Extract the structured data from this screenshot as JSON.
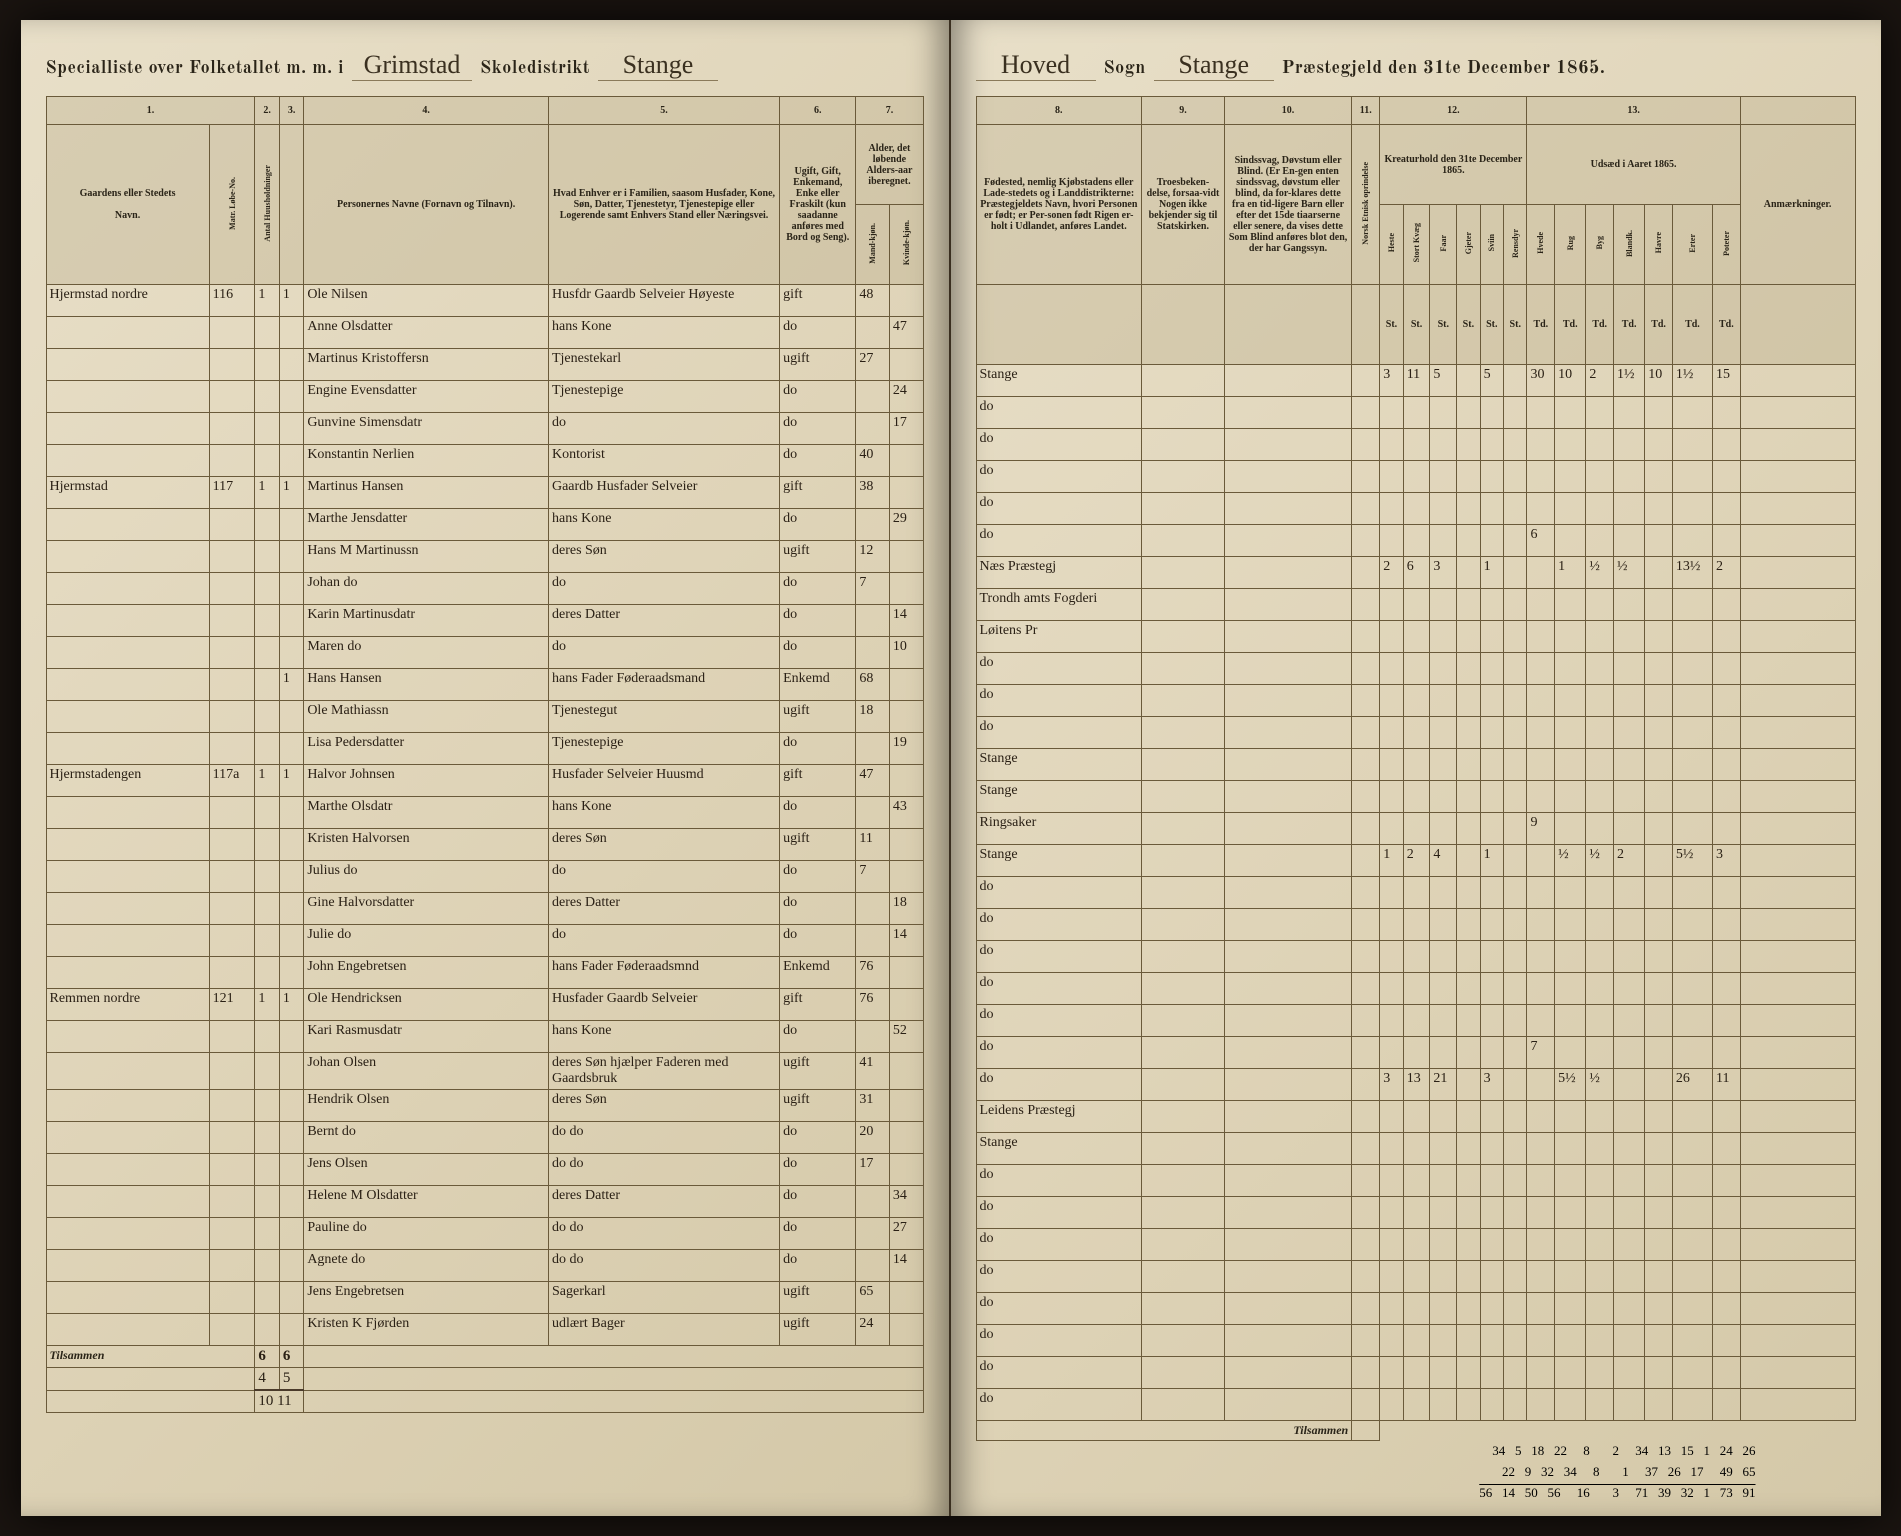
{
  "header": {
    "left_prefix": "Specialliste over Folketallet m. m. i",
    "district_label": "Grimstad",
    "skole_label": "Skoledistrikt",
    "parish_script": "Stange",
    "right_sogn_prefix": "Hoved",
    "sogn_label": "Sogn",
    "sogn_script": "Stange",
    "praestegjeld_label": "Præstegjeld den 31te December 1865."
  },
  "col_headers_left": {
    "c1": "1.",
    "c2": "2.",
    "c3": "3.",
    "c4": "4.",
    "c5": "5.",
    "c6": "6.",
    "c7": "7."
  },
  "col_headers_right": {
    "c8": "8.",
    "c9": "9.",
    "c10": "10.",
    "c11": "11.",
    "c12": "12.",
    "c13": "13."
  },
  "sub_headers_left": {
    "gaard": "Gaardens eller Stedets",
    "navn": "Navn.",
    "matr": "Matr. Løbe-No.",
    "huush": "Antal Huusholdninger",
    "personer": "Personernes Navne (Fornavn og Tilnavn).",
    "stand": "Hvad Enhver er i Familien, saasom Husfader, Kone, Søn, Datter, Tjenestetyr, Tjenestepige eller Logerende samt Enhvers Stand eller Næringsvei.",
    "ugift": "Ugift, Gift, Enkemand, Enke eller Fraskilt (kun saadanne anføres med Bord og Seng).",
    "alder_m": "Alder, det løbende Alders-aar iberegnet.",
    "mand": "Mand-kjøn.",
    "kvinde": "Kvinde-kjøn."
  },
  "sub_headers_right": {
    "fodested": "Fødested, nemlig Kjøbstadens eller Lade-stedets og i Landdistrikterne: Præstegjeldets Navn, hvori Personen er født; er Per-sonen født Rigen er-holt i Udlandet, anføres Landet.",
    "tro": "Troesbeken-delse, forsaa-vidt Nogen ikke bekjender sig til Statskirken.",
    "sind": "Sindssvag, Døvstum eller Blind. (Er En-gen enten sindssvag, døvstum eller blind, da for-klares dette fra en tid-ligere Barn eller efter det 15de tiaarserne eller senere, da vises dette Som Blind anføres blot den, der har Gangssyn.",
    "norsk": "Norsk Etnisk oprindelse",
    "kreatur_title": "Kreaturhold den 31te December 1865.",
    "udsaed_title": "Udsæd i Aaret 1865.",
    "anm": "Anmærkninger.",
    "heste": "Heste",
    "stort": "Stort Kvæg",
    "faar": "Faar",
    "gjeter": "Gjeter",
    "sviin": "Sviin",
    "rensdyr": "Rensdyr",
    "hvede": "Hvede",
    "rug": "Rug",
    "byg": "Byg",
    "bland": "Blandk.",
    "havre": "Havre",
    "erter": "Erter",
    "poteter": "Poteter"
  },
  "rows": [
    {
      "gaard": "Hjermstad nordre",
      "matr": "116",
      "h": "1",
      "p": "1",
      "name": "Ole Nilsen",
      "role": "Husfdr Gaardb Selveier Høyeste",
      "civil": "gift",
      "age_m": "48",
      "age_k": "",
      "birthplace": "Stange",
      "livestock": [
        "3",
        "11",
        "5",
        "",
        "5",
        "",
        "30",
        "10",
        "2",
        "1½",
        "10",
        "1½",
        "15"
      ]
    },
    {
      "gaard": "",
      "matr": "",
      "h": "",
      "p": "",
      "name": "Anne Olsdatter",
      "role": "hans Kone",
      "civil": "do",
      "age_m": "",
      "age_k": "47",
      "birthplace": "do",
      "livestock": []
    },
    {
      "gaard": "",
      "matr": "",
      "h": "",
      "p": "",
      "name": "Martinus Kristoffersn",
      "role": "Tjenestekarl",
      "civil": "ugift",
      "age_m": "27",
      "age_k": "",
      "birthplace": "do",
      "livestock": []
    },
    {
      "gaard": "",
      "matr": "",
      "h": "",
      "p": "",
      "name": "Engine Evensdatter",
      "role": "Tjenestepige",
      "civil": "do",
      "age_m": "",
      "age_k": "24",
      "birthplace": "do",
      "livestock": []
    },
    {
      "gaard": "",
      "matr": "",
      "h": "",
      "p": "",
      "name": "Gunvine Simensdatr",
      "role": "do",
      "civil": "do",
      "age_m": "",
      "age_k": "17",
      "birthplace": "do",
      "livestock": []
    },
    {
      "gaard": "",
      "matr": "",
      "h": "",
      "p": "",
      "name": "Konstantin Nerlien",
      "role": "Kontorist",
      "civil": "do",
      "age_m": "40",
      "age_k": "",
      "birthplace": "do",
      "livestock": [
        "",
        "",
        "",
        "",
        "",
        "",
        "6",
        "",
        "",
        "",
        "",
        "",
        ""
      ]
    },
    {
      "gaard": "Hjermstad",
      "matr": "117",
      "h": "1",
      "p": "1",
      "name": "Martinus Hansen",
      "role": "Gaardb Husfader Selveier",
      "civil": "gift",
      "age_m": "38",
      "age_k": "",
      "birthplace": "Næs Præstegj",
      "livestock": [
        "2",
        "6",
        "3",
        "",
        "1",
        "",
        "",
        "1",
        "½",
        "½",
        "",
        "13½",
        "2"
      ]
    },
    {
      "gaard": "",
      "matr": "",
      "h": "",
      "p": "",
      "name": "Marthe Jensdatter",
      "role": "hans Kone",
      "civil": "do",
      "age_m": "",
      "age_k": "29",
      "birthplace": "Trondh amts Fogderi",
      "livestock": []
    },
    {
      "gaard": "",
      "matr": "",
      "h": "",
      "p": "",
      "name": "Hans M Martinussn",
      "role": "deres Søn",
      "civil": "ugift",
      "age_m": "12",
      "age_k": "",
      "birthplace": "Løitens Pr",
      "livestock": []
    },
    {
      "gaard": "",
      "matr": "",
      "h": "",
      "p": "",
      "name": "Johan do",
      "role": "do",
      "civil": "do",
      "age_m": "7",
      "age_k": "",
      "birthplace": "do",
      "livestock": []
    },
    {
      "gaard": "",
      "matr": "",
      "h": "",
      "p": "",
      "name": "Karin Martinusdatr",
      "role": "deres Datter",
      "civil": "do",
      "age_m": "",
      "age_k": "14",
      "birthplace": "do",
      "livestock": []
    },
    {
      "gaard": "",
      "matr": "",
      "h": "",
      "p": "",
      "name": "Maren do",
      "role": "do",
      "civil": "do",
      "age_m": "",
      "age_k": "10",
      "birthplace": "do",
      "livestock": []
    },
    {
      "gaard": "",
      "matr": "",
      "h": "",
      "p": "1",
      "name": "Hans Hansen",
      "role": "hans Fader Føderaadsmand",
      "civil": "Enkemd",
      "age_m": "68",
      "age_k": "",
      "birthplace": "Stange",
      "livestock": []
    },
    {
      "gaard": "",
      "matr": "",
      "h": "",
      "p": "",
      "name": "Ole Mathiassn",
      "role": "Tjenestegut",
      "civil": "ugift",
      "age_m": "18",
      "age_k": "",
      "birthplace": "Stange",
      "livestock": []
    },
    {
      "gaard": "",
      "matr": "",
      "h": "",
      "p": "",
      "name": "Lisa Pedersdatter",
      "role": "Tjenestepige",
      "civil": "do",
      "age_m": "",
      "age_k": "19",
      "birthplace": "Ringsaker",
      "livestock": [
        "",
        "",
        "",
        "",
        "",
        "",
        "9",
        "",
        "",
        "",
        "",
        "",
        ""
      ]
    },
    {
      "gaard": "Hjermstadengen",
      "matr": "117a",
      "h": "1",
      "p": "1",
      "name": "Halvor Johnsen",
      "role": "Husfader Selveier Huusmd",
      "civil": "gift",
      "age_m": "47",
      "age_k": "",
      "birthplace": "Stange",
      "livestock": [
        "1",
        "2",
        "4",
        "",
        "1",
        "",
        "",
        "½",
        "½",
        "2",
        "",
        "5½",
        "3"
      ]
    },
    {
      "gaard": "",
      "matr": "",
      "h": "",
      "p": "",
      "name": "Marthe Olsdatr",
      "role": "hans Kone",
      "civil": "do",
      "age_m": "",
      "age_k": "43",
      "birthplace": "do",
      "livestock": []
    },
    {
      "gaard": "",
      "matr": "",
      "h": "",
      "p": "",
      "name": "Kristen Halvorsen",
      "role": "deres Søn",
      "civil": "ugift",
      "age_m": "11",
      "age_k": "",
      "birthplace": "do",
      "livestock": []
    },
    {
      "gaard": "",
      "matr": "",
      "h": "",
      "p": "",
      "name": "Julius do",
      "role": "do",
      "civil": "do",
      "age_m": "7",
      "age_k": "",
      "birthplace": "do",
      "livestock": []
    },
    {
      "gaard": "",
      "matr": "",
      "h": "",
      "p": "",
      "name": "Gine Halvorsdatter",
      "role": "deres Datter",
      "civil": "do",
      "age_m": "",
      "age_k": "18",
      "birthplace": "do",
      "livestock": []
    },
    {
      "gaard": "",
      "matr": "",
      "h": "",
      "p": "",
      "name": "Julie do",
      "role": "do",
      "civil": "do",
      "age_m": "",
      "age_k": "14",
      "birthplace": "do",
      "livestock": []
    },
    {
      "gaard": "",
      "matr": "",
      "h": "",
      "p": "",
      "name": "John Engebretsen",
      "role": "hans Fader Føderaadsmnd",
      "civil": "Enkemd",
      "age_m": "76",
      "age_k": "",
      "birthplace": "do",
      "livestock": [
        "",
        "",
        "",
        "",
        "",
        "",
        "7",
        "",
        "",
        "",
        "",
        "",
        ""
      ]
    },
    {
      "gaard": "Remmen nordre",
      "matr": "121",
      "h": "1",
      "p": "1",
      "name": "Ole Hendricksen",
      "role": "Husfader Gaardb Selveier",
      "civil": "gift",
      "age_m": "76",
      "age_k": "",
      "birthplace": "do",
      "livestock": [
        "3",
        "13",
        "21",
        "",
        "3",
        "",
        "",
        "5½",
        "½",
        "",
        "",
        "26",
        "11"
      ]
    },
    {
      "gaard": "",
      "matr": "",
      "h": "",
      "p": "",
      "name": "Kari Rasmusdatr",
      "role": "hans Kone",
      "civil": "do",
      "age_m": "",
      "age_k": "52",
      "birthplace": "Leidens Præstegj",
      "livestock": []
    },
    {
      "gaard": "",
      "matr": "",
      "h": "",
      "p": "",
      "name": "Johan Olsen",
      "role": "deres Søn hjælper Faderen med Gaardsbruk",
      "civil": "ugift",
      "age_m": "41",
      "age_k": "",
      "birthplace": "Stange",
      "livestock": []
    },
    {
      "gaard": "",
      "matr": "",
      "h": "",
      "p": "",
      "name": "Hendrik Olsen",
      "role": "deres Søn",
      "civil": "ugift",
      "age_m": "31",
      "age_k": "",
      "birthplace": "do",
      "livestock": []
    },
    {
      "gaard": "",
      "matr": "",
      "h": "",
      "p": "",
      "name": "Bernt do",
      "role": "do do",
      "civil": "do",
      "age_m": "20",
      "age_k": "",
      "birthplace": "do",
      "livestock": []
    },
    {
      "gaard": "",
      "matr": "",
      "h": "",
      "p": "",
      "name": "Jens Olsen",
      "role": "do do",
      "civil": "do",
      "age_m": "17",
      "age_k": "",
      "birthplace": "do",
      "livestock": []
    },
    {
      "gaard": "",
      "matr": "",
      "h": "",
      "p": "",
      "name": "Helene M Olsdatter",
      "role": "deres Datter",
      "civil": "do",
      "age_m": "",
      "age_k": "34",
      "birthplace": "do",
      "livestock": []
    },
    {
      "gaard": "",
      "matr": "",
      "h": "",
      "p": "",
      "name": "Pauline do",
      "role": "do do",
      "civil": "do",
      "age_m": "",
      "age_k": "27",
      "birthplace": "do",
      "livestock": []
    },
    {
      "gaard": "",
      "matr": "",
      "h": "",
      "p": "",
      "name": "Agnete do",
      "role": "do do",
      "civil": "do",
      "age_m": "",
      "age_k": "14",
      "birthplace": "do",
      "livestock": []
    },
    {
      "gaard": "",
      "matr": "",
      "h": "",
      "p": "",
      "name": "Jens Engebretsen",
      "role": "Sagerkarl",
      "civil": "ugift",
      "age_m": "65",
      "age_k": "",
      "birthplace": "do",
      "livestock": []
    },
    {
      "gaard": "",
      "matr": "",
      "h": "",
      "p": "",
      "name": "Kristen K Fjørden",
      "role": "udlært Bager",
      "civil": "ugift",
      "age_m": "24",
      "age_k": "",
      "birthplace": "do",
      "livestock": []
    }
  ],
  "totals": {
    "left_h": "6",
    "left_p": "6",
    "left_h2": "4",
    "left_p2": "5",
    "left_sum": "10 11",
    "right_row1": [
      "34",
      "5",
      "18",
      "22",
      "",
      "8",
      "",
      "",
      "2",
      "",
      "34",
      "13",
      "15",
      "1",
      "24",
      "26"
    ],
    "right_row2": [
      "22",
      "9",
      "32",
      "34",
      "",
      "8",
      "",
      "",
      "1",
      "",
      "37",
      "26",
      "17",
      "",
      "49",
      "65"
    ],
    "right_sum": [
      "56",
      "14",
      "50",
      "56",
      "",
      "16",
      "",
      "",
      "3",
      "",
      "71",
      "39",
      "32",
      "1",
      "73",
      "91"
    ]
  },
  "footer_label": "Tilsammen"
}
